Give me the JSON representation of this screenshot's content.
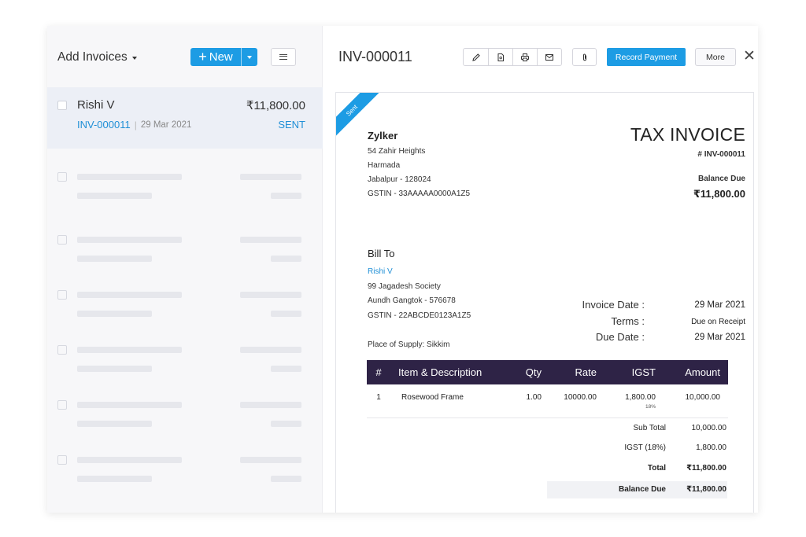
{
  "list": {
    "title": "Add Invoices",
    "new_label": "New",
    "active_item": {
      "customer": "Rishi V",
      "amount": "₹11,800.00",
      "invoice_no": "INV-000011",
      "date": "29 Mar 2021",
      "status": "SENT"
    }
  },
  "detail": {
    "invoice_no": "INV-000011",
    "toolbar": {
      "icons": [
        "pencil-icon",
        "pdf-icon",
        "print-icon",
        "mail-icon",
        "paperclip-icon"
      ],
      "record_payment": "Record Payment",
      "more": "More",
      "close": "✕"
    },
    "ribbon": "Sent",
    "org": {
      "name": "Zylker",
      "address1": "54 Zahir Heights",
      "address2": "Harmada",
      "address3": "Jabalpur - 128024",
      "gstin": "GSTIN - 33AAAAA0000A1Z5"
    },
    "doc_title": "TAX INVOICE",
    "doc_number": "# INV-000011",
    "balance_due_label": "Balance Due",
    "balance_due_value": "₹11,800.00",
    "bill_to": {
      "label": "Bill To",
      "name": "Rishi V",
      "address1": "99 Jagadesh Society",
      "address2": "Aundh Gangtok - 576678",
      "gstin": "GSTIN - 22ABCDE0123A1Z5",
      "place_of_supply": "Place of Supply: Sikkim"
    },
    "dates": {
      "invoice_date_label": "Invoice Date :",
      "invoice_date": "29 Mar 2021",
      "terms_label": "Terms :",
      "terms": "Due on Receipt",
      "due_date_label": "Due Date :",
      "due_date": "29 Mar 2021"
    },
    "table": {
      "headers": [
        "#",
        "Item & Description",
        "Qty",
        "Rate",
        "IGST",
        "Amount"
      ],
      "rows": [
        {
          "num": "1",
          "item": "Rosewood Frame",
          "qty": "1.00",
          "rate": "10000.00",
          "igst": "1,800.00",
          "igst_pct": "18%",
          "amount": "10,000.00"
        }
      ]
    },
    "totals": {
      "sub_total_label": "Sub Total",
      "sub_total": "10,000.00",
      "igst_label": "IGST (18%)",
      "igst": "1,800.00",
      "total_label": "Total",
      "total": "₹11,800.00",
      "balance_due_label": "Balance Due",
      "balance_due": "₹11,800.00"
    }
  },
  "colors": {
    "accent": "#1d9ce4",
    "table_header": "#2e2346",
    "link": "#1f8fd6"
  }
}
